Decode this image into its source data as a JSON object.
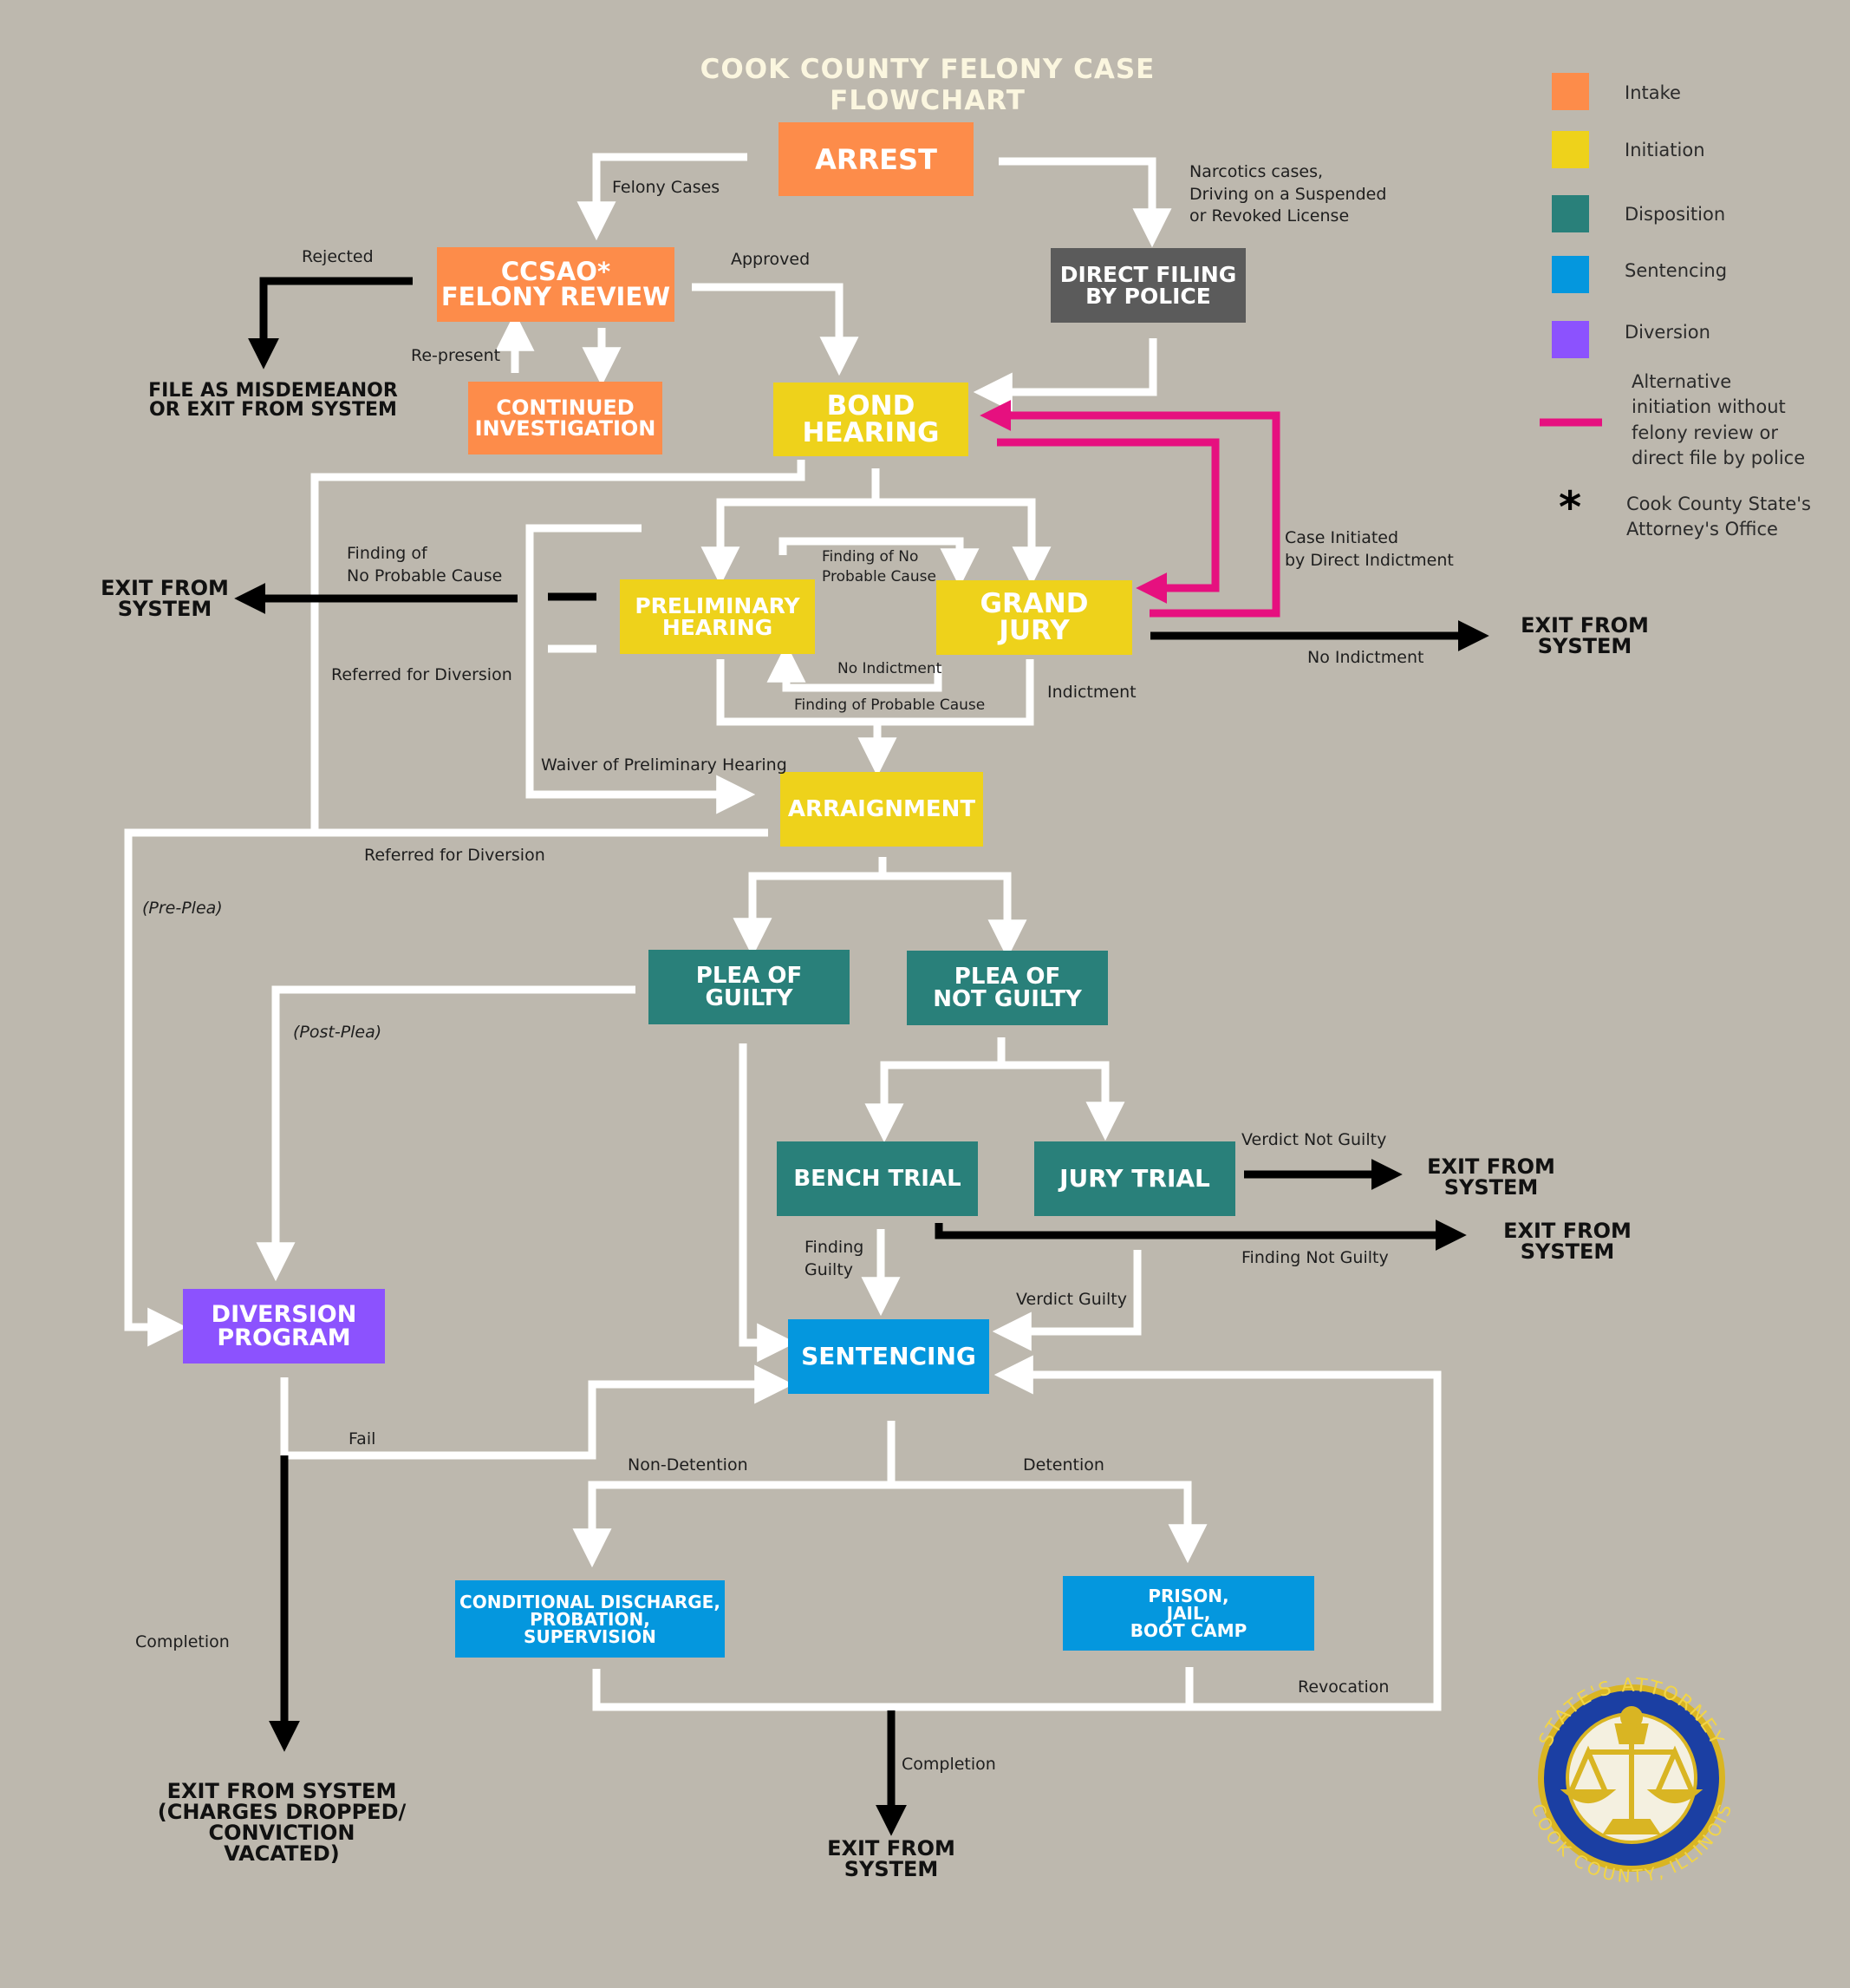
{
  "title": "COOK COUNTY FELONY CASE FLOWCHART",
  "colors": {
    "background": "#bdb8ae",
    "intake": "#fd8c4a",
    "initiation": "#eed21b",
    "disposition": "#29807a",
    "sentencing": "#0497de",
    "diversion": "#8c52fe",
    "police": "#5b5b5b",
    "alternative": "#e6107f",
    "connector": "#ffffff",
    "exit_arrow": "#000000"
  },
  "boxes": {
    "arrest": "ARREST",
    "ccsao": "CCSAO*\nFELONY REVIEW",
    "continued": "CONTINUED\nINVESTIGATION",
    "direct_filing": "DIRECT FILING\nBY POLICE",
    "bond": "BOND\nHEARING",
    "prelim": "PRELIMINARY\nHEARING",
    "grand_jury": "GRAND\nJURY",
    "arraignment": "ARRAIGNMENT",
    "plea_guilty": "PLEA  OF\nGUILTY",
    "plea_not_guilty": "PLEA  OF\nNOT GUILTY",
    "bench": "BENCH TRIAL",
    "jury": "JURY TRIAL",
    "diversion": "DIVERSION\nPROGRAM",
    "sentencing": "SENTENCING",
    "conditional": "CONDITIONAL DISCHARGE,\nPROBATION,\nSUPERVISION",
    "prison": "PRISON,\nJAIL,\nBOOT CAMP"
  },
  "labels": {
    "felony_cases": "Felony Cases",
    "narcotics": "Narcotics cases,\nDriving on a Suspended\n or Revoked License",
    "rejected": "Rejected",
    "approved": "Approved",
    "represent": "Re-present",
    "finding_no_pc": "Finding of\nNo Probable Cause",
    "finding_no_pc_small": "Finding of No\nProbable Cause",
    "case_initiated": "Case Initiated\nby Direct Indictment",
    "no_indictment_inner": "No Indictment",
    "finding_pc": "Finding of Probable Cause",
    "no_indictment": "No Indictment",
    "indictment": "Indictment",
    "referred_div_1": "Referred for Diversion",
    "waiver": "Waiver of Preliminary Hearing",
    "referred_div_2": "Referred for Diversion",
    "pre_plea": "(Pre-Plea)",
    "post_plea": "(Post-Plea)",
    "verdict_not_guilty": "Verdict Not Guilty",
    "finding_not_guilty": "Finding  Not  Guilty",
    "finding_guilty": "Finding\nGuilty",
    "verdict_guilty": "Verdict Guilty",
    "fail": "Fail",
    "non_detention": "Non-Detention",
    "detention": "Detention",
    "completion_left": "Completion",
    "completion_center": "Completion",
    "revocation": "Revocation"
  },
  "exits": {
    "misdemeanor": "FILE AS MISDEMEANOR\nOR EXIT FROM SYSTEM",
    "exit_left": "EXIT FROM\nSYSTEM",
    "exit_grand_jury": "EXIT FROM\nSYSTEM",
    "exit_jury": "EXIT FROM\nSYSTEM",
    "exit_bench": "EXIT FROM\nSYSTEM",
    "exit_diversion": "EXIT FROM SYSTEM\n(CHARGES DROPPED/\nCONVICTION\nVACATED)",
    "exit_sentencing": "EXIT FROM\nSYSTEM"
  },
  "legend": [
    {
      "label": "Intake",
      "color": "#fd8c4a"
    },
    {
      "label": "Initiation",
      "color": "#eed21b"
    },
    {
      "label": "Disposition",
      "color": "#29807a"
    },
    {
      "label": "Sentencing",
      "color": "#0497de"
    },
    {
      "label": "Diversion",
      "color": "#8c52fe"
    }
  ],
  "legend_alternative": "Alternative\ninitiation without\nfelony review or\ndirect file by police",
  "legend_asterisk_symbol": "*",
  "legend_asterisk": "Cook County State's\nAttorney's Office",
  "seal": {
    "top_text": "STATE'S ATTORNEY",
    "bottom_text": "COOK COUNTY, ILLINOIS"
  }
}
